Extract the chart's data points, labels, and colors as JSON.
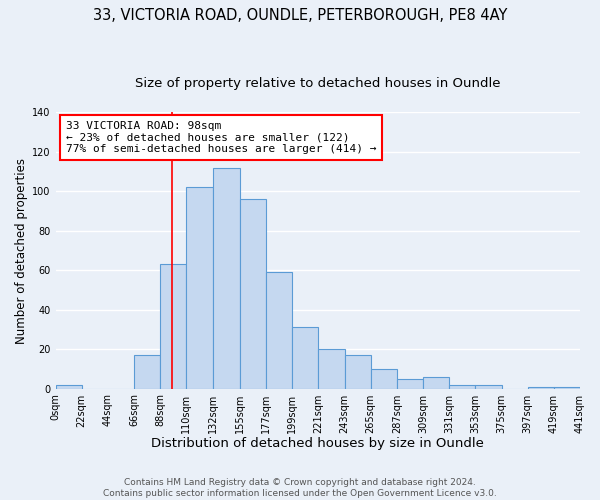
{
  "title1": "33, VICTORIA ROAD, OUNDLE, PETERBOROUGH, PE8 4AY",
  "title2": "Size of property relative to detached houses in Oundle",
  "xlabel": "Distribution of detached houses by size in Oundle",
  "ylabel": "Number of detached properties",
  "bar_color": "#c5d8f0",
  "bar_edge_color": "#5b9bd5",
  "bin_edges": [
    0,
    22,
    44,
    66,
    88,
    110,
    132,
    155,
    177,
    199,
    221,
    243,
    265,
    287,
    309,
    331,
    353,
    375,
    397,
    419,
    441
  ],
  "bar_heights": [
    2,
    0,
    0,
    17,
    63,
    102,
    112,
    96,
    59,
    31,
    20,
    17,
    10,
    5,
    6,
    2,
    2,
    0,
    1,
    1
  ],
  "tick_labels": [
    "0sqm",
    "22sqm",
    "44sqm",
    "66sqm",
    "88sqm",
    "110sqm",
    "132sqm",
    "155sqm",
    "177sqm",
    "199sqm",
    "221sqm",
    "243sqm",
    "265sqm",
    "287sqm",
    "309sqm",
    "331sqm",
    "353sqm",
    "375sqm",
    "397sqm",
    "419sqm",
    "441sqm"
  ],
  "ylim": [
    0,
    140
  ],
  "yticks": [
    0,
    20,
    40,
    60,
    80,
    100,
    120,
    140
  ],
  "red_line_x": 98,
  "annotation_title": "33 VICTORIA ROAD: 98sqm",
  "annotation_line1": "← 23% of detached houses are smaller (122)",
  "annotation_line2": "77% of semi-detached houses are larger (414) →",
  "footer1": "Contains HM Land Registry data © Crown copyright and database right 2024.",
  "footer2": "Contains public sector information licensed under the Open Government Licence v3.0.",
  "background_color": "#eaf0f8",
  "grid_color": "#ffffff",
  "title1_fontsize": 10.5,
  "title2_fontsize": 9.5,
  "xlabel_fontsize": 9.5,
  "ylabel_fontsize": 8.5,
  "tick_fontsize": 7,
  "footer_fontsize": 6.5,
  "annot_fontsize": 8
}
